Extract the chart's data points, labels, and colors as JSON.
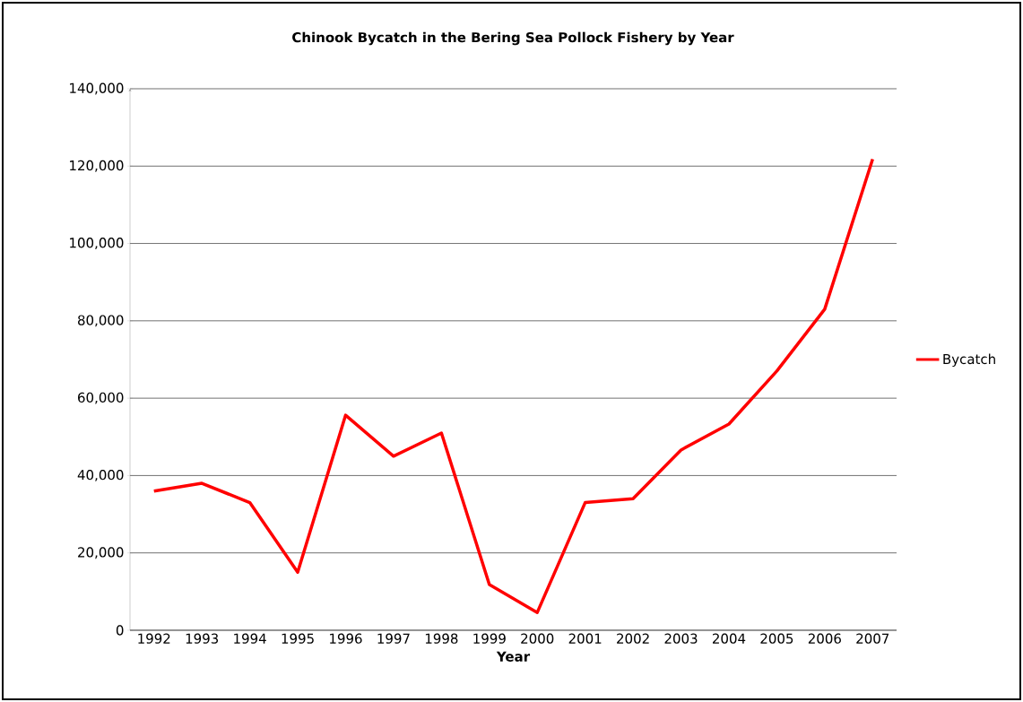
{
  "chart_data": {
    "type": "line",
    "title": "Chinook Bycatch in the Bering Sea Pollock Fishery by Year",
    "xlabel": "Year",
    "categories": [
      "1992",
      "1993",
      "1994",
      "1995",
      "1996",
      "1997",
      "1998",
      "1999",
      "2000",
      "2001",
      "2002",
      "2003",
      "2004",
      "2005",
      "2006",
      "2007"
    ],
    "series": [
      {
        "name": "Bycatch",
        "color": "#ff0000",
        "values": [
          36000,
          38000,
          33000,
          15000,
          55600,
          45000,
          51000,
          11800,
          4600,
          33000,
          34000,
          46600,
          53300,
          67000,
          83000,
          121800
        ]
      }
    ],
    "ylim": [
      0,
      140000
    ],
    "yticks": [
      {
        "value": 0,
        "label": "0"
      },
      {
        "value": 20000,
        "label": "20,000"
      },
      {
        "value": 40000,
        "label": "40,000"
      },
      {
        "value": 60000,
        "label": "60,000"
      },
      {
        "value": 80000,
        "label": "80,000"
      },
      {
        "value": 100000,
        "label": "100,000"
      },
      {
        "value": 120000,
        "label": "120,000"
      },
      {
        "value": 140000,
        "label": "140,000"
      }
    ],
    "grid": "y",
    "legend": "right",
    "marker": "none",
    "line_style": "solid"
  }
}
